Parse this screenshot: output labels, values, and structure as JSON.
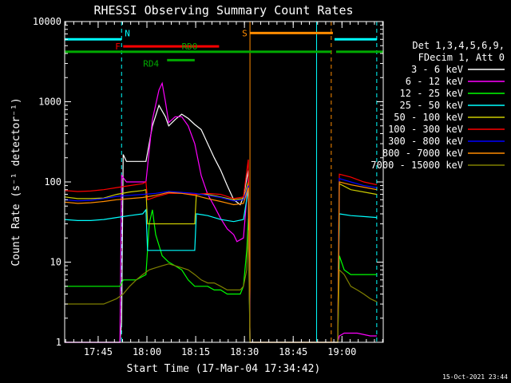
{
  "chart_data": {
    "type": "line",
    "title": "RHESSI Observing Summary Count Rates",
    "xlabel": "Start Time (17-Mar-04 17:34:42)",
    "ylabel": "Count Rate (s⁻¹ detector⁻¹)",
    "yscale": "log",
    "ylim": [
      1,
      10000
    ],
    "xlim_minutes": [
      0,
      98
    ],
    "x_unit": "minutes after 17:34:42",
    "x_ticks": [
      {
        "label": "17:45",
        "value": 10.3
      },
      {
        "label": "18:00",
        "value": 25.3
      },
      {
        "label": "18:15",
        "value": 40.3
      },
      {
        "label": "18:30",
        "value": 55.3
      },
      {
        "label": "18:45",
        "value": 70.3
      },
      {
        "label": "19:00",
        "value": 85.3
      }
    ],
    "y_ticks": [
      {
        "label": "1",
        "value": 1
      },
      {
        "label": "10",
        "value": 10
      },
      {
        "label": "100",
        "value": 100
      },
      {
        "label": "1000",
        "value": 1000
      },
      {
        "label": "10000",
        "value": 10000
      }
    ],
    "legend_header": [
      "Det 1,3,4,5,6,9,",
      "FDecim 1, Att 0"
    ],
    "legend_position": "right",
    "series": [
      {
        "name": "3 - 6 keV",
        "color": "#ffffff",
        "points": [
          [
            0,
            1
          ],
          [
            17,
            1
          ],
          [
            17.5,
            1.8
          ],
          [
            18,
            220
          ],
          [
            19,
            180
          ],
          [
            25,
            180
          ],
          [
            27,
            500
          ],
          [
            29,
            900
          ],
          [
            31,
            650
          ],
          [
            32,
            500
          ],
          [
            34,
            600
          ],
          [
            36,
            700
          ],
          [
            38,
            620
          ],
          [
            40,
            520
          ],
          [
            42,
            450
          ],
          [
            44,
            300
          ],
          [
            46,
            200
          ],
          [
            48,
            140
          ],
          [
            50,
            90
          ],
          [
            52,
            60
          ],
          [
            54,
            52
          ],
          [
            55,
            65
          ],
          [
            56.5,
            140
          ],
          [
            57,
            1
          ]
        ]
      },
      {
        "name": "6 - 12 keV",
        "color": "#ff00ff",
        "points": [
          [
            0,
            1
          ],
          [
            17,
            1
          ],
          [
            17.5,
            120
          ],
          [
            19,
            100
          ],
          [
            25,
            100
          ],
          [
            27,
            600
          ],
          [
            29,
            1400
          ],
          [
            30,
            1700
          ],
          [
            31,
            1000
          ],
          [
            32,
            550
          ],
          [
            34,
            650
          ],
          [
            36,
            650
          ],
          [
            38,
            500
          ],
          [
            40,
            300
          ],
          [
            42,
            120
          ],
          [
            44,
            70
          ],
          [
            46,
            50
          ],
          [
            48,
            35
          ],
          [
            50,
            26
          ],
          [
            52,
            22
          ],
          [
            53,
            18
          ],
          [
            55,
            20
          ],
          [
            56.5,
            110
          ],
          [
            57,
            1
          ],
          [
            84,
            1
          ],
          [
            84.5,
            1.2
          ],
          [
            86,
            1.3
          ],
          [
            90,
            1.3
          ],
          [
            94,
            1.2
          ],
          [
            96,
            1.2
          ]
        ]
      },
      {
        "name": "12 - 25 keV",
        "color": "#00ff00",
        "points": [
          [
            0,
            5
          ],
          [
            4,
            5
          ],
          [
            8,
            5
          ],
          [
            12,
            5
          ],
          [
            17,
            5
          ],
          [
            18,
            6
          ],
          [
            20,
            6
          ],
          [
            22,
            6
          ],
          [
            25,
            7
          ],
          [
            26,
            30
          ],
          [
            27,
            45
          ],
          [
            28,
            22
          ],
          [
            30,
            12
          ],
          [
            32,
            10
          ],
          [
            34,
            9
          ],
          [
            36,
            8
          ],
          [
            38,
            6
          ],
          [
            40,
            5
          ],
          [
            42,
            5
          ],
          [
            44,
            5
          ],
          [
            46,
            4.5
          ],
          [
            48,
            4.5
          ],
          [
            50,
            4
          ],
          [
            52,
            4
          ],
          [
            54,
            4
          ],
          [
            55,
            5
          ],
          [
            56,
            14
          ],
          [
            56.5,
            35
          ],
          [
            57,
            1
          ],
          [
            84,
            1
          ],
          [
            84.5,
            12
          ],
          [
            86,
            8
          ],
          [
            88,
            7
          ],
          [
            90,
            7
          ],
          [
            92,
            7
          ],
          [
            94,
            7
          ],
          [
            96,
            7
          ]
        ]
      },
      {
        "name": "25 - 50 keV",
        "color": "#00ffff",
        "points": [
          [
            0,
            34
          ],
          [
            4,
            33
          ],
          [
            8,
            33
          ],
          [
            12,
            34
          ],
          [
            16,
            36
          ],
          [
            20,
            38
          ],
          [
            24,
            40
          ],
          [
            25,
            45
          ],
          [
            25.5,
            14
          ],
          [
            30,
            14
          ],
          [
            32,
            14
          ],
          [
            36,
            14
          ],
          [
            39,
            14
          ],
          [
            40,
            14
          ],
          [
            40.5,
            40
          ],
          [
            44,
            38
          ],
          [
            48,
            34
          ],
          [
            52,
            32
          ],
          [
            55,
            34
          ],
          [
            56.5,
            80
          ],
          [
            57,
            1
          ],
          [
            84,
            1
          ],
          [
            84.5,
            40
          ],
          [
            88,
            38
          ],
          [
            92,
            37
          ],
          [
            96,
            36
          ]
        ]
      },
      {
        "name": "50 - 100 keV",
        "color": "#cccc00",
        "points": [
          [
            0,
            65
          ],
          [
            4,
            62
          ],
          [
            8,
            62
          ],
          [
            12,
            63
          ],
          [
            16,
            70
          ],
          [
            20,
            75
          ],
          [
            24,
            78
          ],
          [
            25,
            80
          ],
          [
            25.5,
            30
          ],
          [
            30,
            30
          ],
          [
            34,
            30
          ],
          [
            39,
            30
          ],
          [
            40,
            30
          ],
          [
            40.5,
            70
          ],
          [
            44,
            70
          ],
          [
            48,
            65
          ],
          [
            52,
            60
          ],
          [
            55,
            62
          ],
          [
            56.5,
            100
          ],
          [
            57,
            1
          ],
          [
            84,
            1
          ],
          [
            84.5,
            95
          ],
          [
            88,
            80
          ],
          [
            92,
            75
          ],
          [
            96,
            70
          ]
        ]
      },
      {
        "name": "100 - 300 keV",
        "color": "#ff0000",
        "points": [
          [
            0,
            78
          ],
          [
            4,
            76
          ],
          [
            8,
            77
          ],
          [
            12,
            80
          ],
          [
            16,
            85
          ],
          [
            20,
            90
          ],
          [
            24,
            95
          ],
          [
            25,
            100
          ],
          [
            25.5,
            60
          ],
          [
            28,
            65
          ],
          [
            32,
            72
          ],
          [
            36,
            72
          ],
          [
            40,
            70
          ],
          [
            44,
            72
          ],
          [
            48,
            70
          ],
          [
            52,
            62
          ],
          [
            55,
            65
          ],
          [
            56.5,
            190
          ],
          [
            57,
            1
          ],
          [
            84,
            1
          ],
          [
            84.5,
            125
          ],
          [
            88,
            115
          ],
          [
            92,
            100
          ],
          [
            96,
            92
          ]
        ]
      },
      {
        "name": "300 - 800 keV",
        "color": "#0000ff",
        "points": [
          [
            0,
            60
          ],
          [
            4,
            58
          ],
          [
            8,
            59
          ],
          [
            12,
            62
          ],
          [
            16,
            66
          ],
          [
            20,
            68
          ],
          [
            24,
            70
          ],
          [
            28,
            72
          ],
          [
            32,
            76
          ],
          [
            36,
            74
          ],
          [
            40,
            72
          ],
          [
            44,
            68
          ],
          [
            48,
            64
          ],
          [
            52,
            58
          ],
          [
            55,
            60
          ],
          [
            56.5,
            90
          ],
          [
            57,
            1
          ],
          [
            84,
            1
          ],
          [
            84.5,
            110
          ],
          [
            88,
            100
          ],
          [
            92,
            90
          ],
          [
            96,
            85
          ]
        ]
      },
      {
        "name": "800 - 7000 keV",
        "color": "#ff8c00",
        "points": [
          [
            0,
            56
          ],
          [
            4,
            54
          ],
          [
            8,
            55
          ],
          [
            12,
            57
          ],
          [
            16,
            60
          ],
          [
            20,
            62
          ],
          [
            24,
            64
          ],
          [
            28,
            68
          ],
          [
            32,
            74
          ],
          [
            36,
            72
          ],
          [
            40,
            68
          ],
          [
            44,
            62
          ],
          [
            48,
            57
          ],
          [
            52,
            52
          ],
          [
            55,
            54
          ],
          [
            56.5,
            85
          ],
          [
            57,
            1
          ],
          [
            84,
            1
          ],
          [
            84.5,
            100
          ],
          [
            88,
            92
          ],
          [
            92,
            86
          ],
          [
            96,
            80
          ]
        ]
      },
      {
        "name": "7000 - 15000 keV",
        "color": "#808000",
        "points": [
          [
            0,
            3
          ],
          [
            4,
            3
          ],
          [
            8,
            3
          ],
          [
            12,
            3
          ],
          [
            16,
            3.5
          ],
          [
            18,
            4
          ],
          [
            20,
            5
          ],
          [
            22,
            6
          ],
          [
            24,
            7
          ],
          [
            26,
            8
          ],
          [
            28,
            8.5
          ],
          [
            30,
            9
          ],
          [
            32,
            9.5
          ],
          [
            34,
            9
          ],
          [
            36,
            8.5
          ],
          [
            38,
            8
          ],
          [
            40,
            7
          ],
          [
            42,
            6
          ],
          [
            44,
            5.5
          ],
          [
            46,
            5.5
          ],
          [
            48,
            5
          ],
          [
            50,
            4.5
          ],
          [
            52,
            4.5
          ],
          [
            54,
            4.5
          ],
          [
            55,
            5
          ],
          [
            56,
            8
          ],
          [
            56.5,
            25
          ],
          [
            57,
            1
          ],
          [
            84,
            1
          ],
          [
            84.5,
            8
          ],
          [
            86,
            7
          ],
          [
            88,
            5
          ],
          [
            90,
            4.5
          ],
          [
            92,
            4
          ],
          [
            94,
            3.5
          ],
          [
            96,
            3.2
          ]
        ]
      }
    ],
    "annotations": [
      {
        "label": "N",
        "color": "#00ffff",
        "value": 6000,
        "start": 0,
        "end": 17.5
      },
      {
        "label": "",
        "color": "#00ffff",
        "value": 6000,
        "start": 83,
        "end": 96
      },
      {
        "label": "F",
        "color": "#ff0000",
        "value": 4900,
        "start": 18,
        "end": 47.5
      },
      {
        "label": "S",
        "color": "#ff8c00",
        "value": 7200,
        "start": 57,
        "end": 82.5
      },
      {
        "label": "RDO",
        "color": "#00aa00",
        "value": 4200,
        "start": 0,
        "end": 82
      },
      {
        "label": "",
        "color": "#00aa00",
        "value": 4200,
        "start": 83.5,
        "end": 98
      },
      {
        "label": "RD4",
        "color": "#00aa00",
        "value": 3300,
        "start": 31.5,
        "end": 40
      }
    ],
    "vertical_markers": [
      {
        "color": "#00ffff",
        "style": "solid",
        "x": 0
      },
      {
        "color": "#00ffff",
        "style": "dashed",
        "x": 17.5
      },
      {
        "color": "#ff8c00",
        "style": "solid",
        "x": 57
      },
      {
        "color": "#00ffff",
        "style": "solid",
        "x": 77.5
      },
      {
        "color": "#ff8c00",
        "style": "dashed",
        "x": 82
      },
      {
        "color": "#00ffff",
        "style": "dashed",
        "x": 96
      }
    ]
  },
  "footer": {
    "date_stamp": "15-Oct-2021 23:44"
  }
}
